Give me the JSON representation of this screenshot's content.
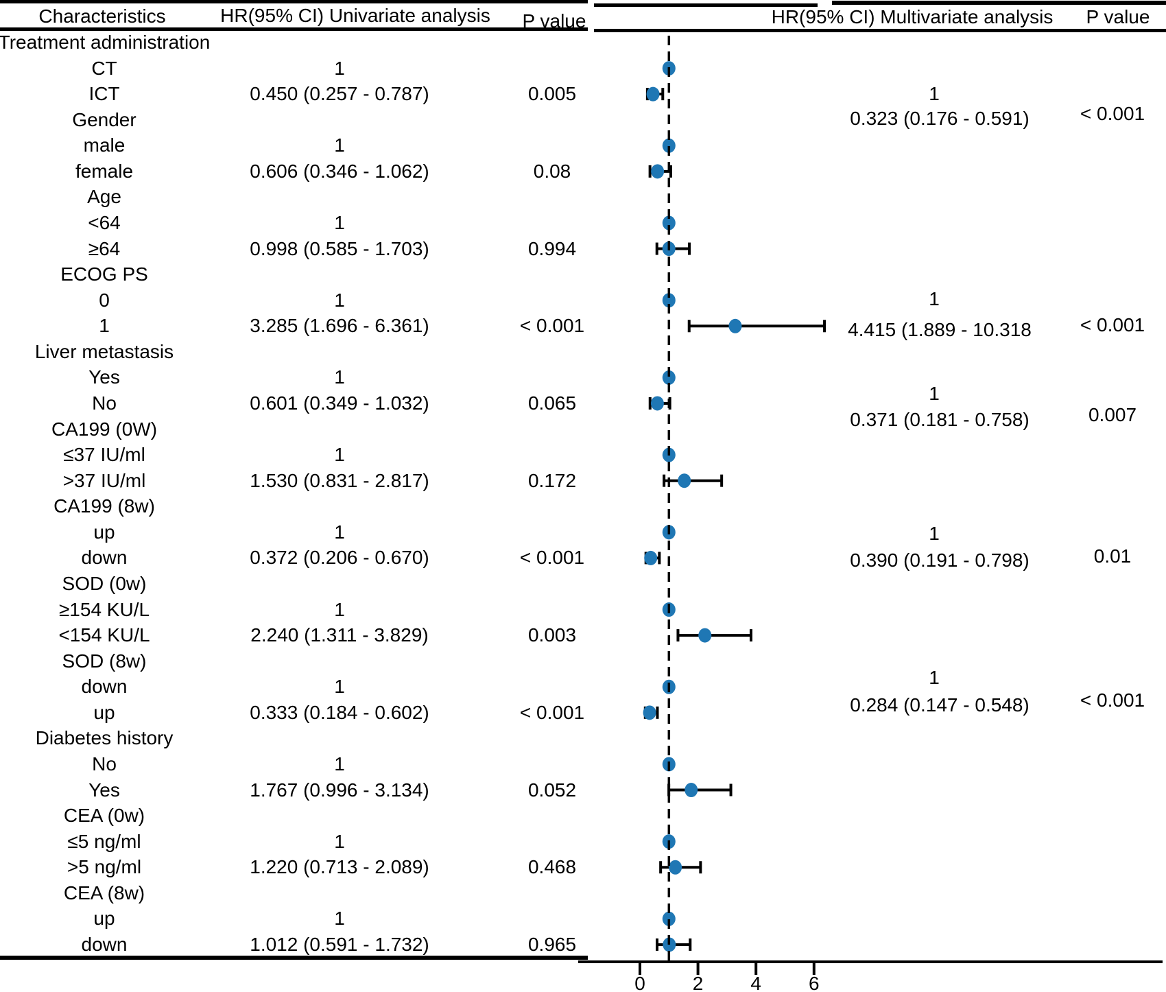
{
  "header": {
    "characteristics": "Characteristics",
    "univariate": "HR(95% CI) Univariate analysis",
    "p_value_left": "P value",
    "multivariate": "HR(95% CI) Multivariate analysis",
    "p_value_right": "P value"
  },
  "chart_data": {
    "type": "forest",
    "title": "Univariate and multivariate Cox analysis forest plot",
    "x_axis": {
      "ticks": [
        0,
        2,
        4,
        6
      ],
      "reference_line": 1,
      "range": [
        -2.1,
        18
      ]
    },
    "point_color": "#1f77b4",
    "rows": [
      {
        "label": "Treatment administration",
        "kind": "group"
      },
      {
        "label": "CT",
        "kind": "ref",
        "uni_hr_text": "1",
        "hr": 1
      },
      {
        "label": "ICT",
        "kind": "est",
        "uni_hr_text": "0.450 (0.257 - 0.787)",
        "uni_p_text": "0.005",
        "hr": 0.45,
        "lo": 0.257,
        "hi": 0.787
      },
      {
        "label": "Gender",
        "kind": "group"
      },
      {
        "label": "male",
        "kind": "ref",
        "uni_hr_text": "1",
        "hr": 1
      },
      {
        "label": "female",
        "kind": "est",
        "uni_hr_text": "0.606 (0.346 - 1.062)",
        "uni_p_text": "0.08",
        "hr": 0.606,
        "lo": 0.346,
        "hi": 1.062
      },
      {
        "label": "Age",
        "kind": "group"
      },
      {
        "label": "<64",
        "kind": "ref",
        "uni_hr_text": "1",
        "hr": 1
      },
      {
        "label": "≥64",
        "kind": "est",
        "uni_hr_text": "0.998 (0.585 - 1.703)",
        "uni_p_text": "0.994",
        "hr": 0.998,
        "lo": 0.585,
        "hi": 1.703
      },
      {
        "label": "ECOG PS",
        "kind": "group"
      },
      {
        "label": "0",
        "kind": "ref",
        "uni_hr_text": "1",
        "hr": 1
      },
      {
        "label": "1",
        "kind": "est",
        "uni_hr_text": "3.285 (1.696 - 6.361)",
        "uni_p_text": "< 0.001",
        "hr": 3.285,
        "lo": 1.696,
        "hi": 6.361
      },
      {
        "label": "Liver metastasis",
        "kind": "group"
      },
      {
        "label": "Yes",
        "kind": "ref",
        "uni_hr_text": "1",
        "hr": 1
      },
      {
        "label": "No",
        "kind": "est",
        "uni_hr_text": "0.601 (0.349 - 1.032)",
        "uni_p_text": "0.065",
        "hr": 0.601,
        "lo": 0.349,
        "hi": 1.032
      },
      {
        "label": "CA199 (0W)",
        "kind": "group"
      },
      {
        "label": "≤37 IU/ml",
        "kind": "ref",
        "uni_hr_text": "1",
        "hr": 1
      },
      {
        "label": ">37 IU/ml",
        "kind": "est",
        "uni_hr_text": "1.530 (0.831 - 2.817)",
        "uni_p_text": "0.172",
        "hr": 1.53,
        "lo": 0.831,
        "hi": 2.817
      },
      {
        "label": "CA199 (8w)",
        "kind": "group"
      },
      {
        "label": "up",
        "kind": "ref",
        "uni_hr_text": "1",
        "hr": 1
      },
      {
        "label": "down",
        "kind": "est",
        "uni_hr_text": "0.372 (0.206 - 0.670)",
        "uni_p_text": "< 0.001",
        "hr": 0.372,
        "lo": 0.206,
        "hi": 0.67
      },
      {
        "label": "SOD (0w)",
        "kind": "group"
      },
      {
        "label": "≥154 KU/L",
        "kind": "ref",
        "uni_hr_text": "1",
        "hr": 1
      },
      {
        "label": "<154 KU/L",
        "kind": "est",
        "uni_hr_text": "2.240 (1.311 - 3.829)",
        "uni_p_text": "0.003",
        "hr": 2.24,
        "lo": 1.311,
        "hi": 3.829
      },
      {
        "label": "SOD (8w)",
        "kind": "group"
      },
      {
        "label": "down",
        "kind": "ref",
        "uni_hr_text": "1",
        "hr": 1
      },
      {
        "label": "up",
        "kind": "est",
        "uni_hr_text": "0.333 (0.184 - 0.602)",
        "uni_p_text": "< 0.001",
        "hr": 0.333,
        "lo": 0.184,
        "hi": 0.602
      },
      {
        "label": "Diabetes history",
        "kind": "group"
      },
      {
        "label": "No",
        "kind": "ref",
        "uni_hr_text": "1",
        "hr": 1
      },
      {
        "label": "Yes",
        "kind": "est",
        "uni_hr_text": "1.767 (0.996 - 3.134)",
        "uni_p_text": "0.052",
        "hr": 1.767,
        "lo": 0.996,
        "hi": 3.134
      },
      {
        "label": "CEA (0w)",
        "kind": "group"
      },
      {
        "label": "≤5 ng/ml",
        "kind": "ref",
        "uni_hr_text": "1",
        "hr": 1
      },
      {
        "label": ">5 ng/ml",
        "kind": "est",
        "uni_hr_text": "1.220 (0.713 - 2.089)",
        "uni_p_text": "0.468",
        "hr": 1.22,
        "lo": 0.713,
        "hi": 2.089
      },
      {
        "label": "CEA (8w)",
        "kind": "group"
      },
      {
        "label": "up",
        "kind": "ref",
        "uni_hr_text": "1",
        "hr": 1
      },
      {
        "label": "down",
        "kind": "est",
        "uni_hr_text": "1.012 (0.591 - 1.732)",
        "uni_p_text": "0.965",
        "hr": 1.012,
        "lo": 0.591,
        "hi": 1.732
      }
    ],
    "multivariate_blocks": [
      {
        "variable": "Treatment administration",
        "ref_text": "1",
        "hr_text": "0.323 (0.176 - 0.591)",
        "p_text": "< 0.001",
        "hr": 0.323,
        "lo": 0.176,
        "hi": 0.591
      },
      {
        "variable": "ECOG PS",
        "ref_text": "1",
        "hr_text": "4.415 (1.889 - 10.318",
        "p_text": "< 0.001",
        "hr": 4.415,
        "lo": 1.889,
        "hi": 10.318
      },
      {
        "variable": "Liver metastasis",
        "ref_text": "1",
        "hr_text": "0.371 (0.181 - 0.758)",
        "p_text": "0.007",
        "hr": 0.371,
        "lo": 0.181,
        "hi": 0.758
      },
      {
        "variable": "CA199 (8w)",
        "ref_text": "1",
        "hr_text": "0.390 (0.191 - 0.798)",
        "p_text": "0.01",
        "hr": 0.39,
        "lo": 0.191,
        "hi": 0.798
      },
      {
        "variable": "SOD (8w)",
        "ref_text": "1",
        "hr_text": "0.284 (0.147 - 0.548)",
        "p_text": "< 0.001",
        "hr": 0.284,
        "lo": 0.147,
        "hi": 0.548
      }
    ]
  }
}
